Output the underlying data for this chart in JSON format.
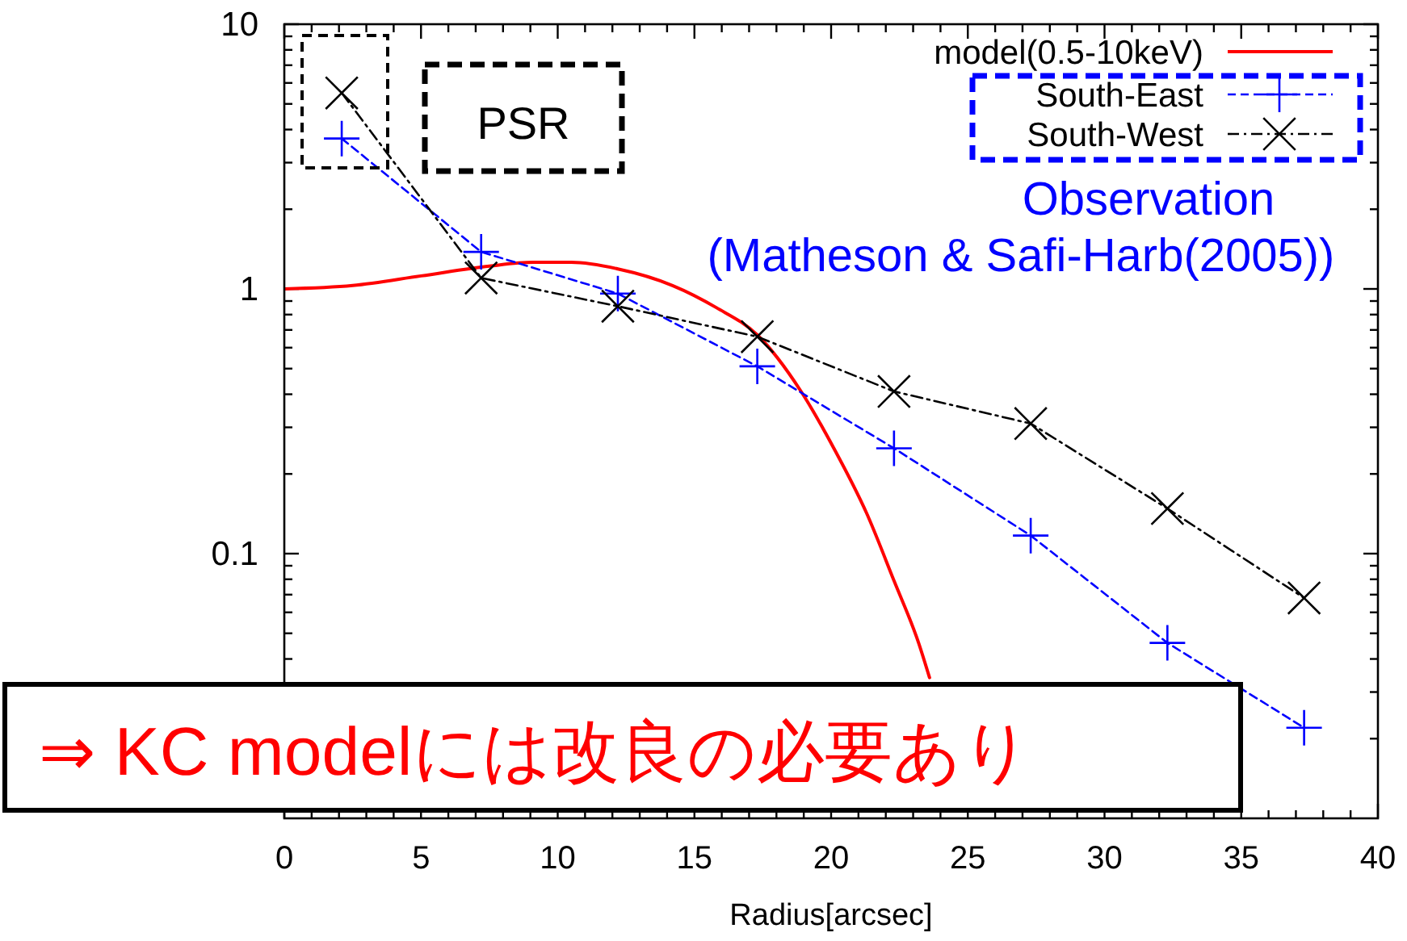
{
  "chart_data": {
    "type": "line",
    "xlabel": "Radius[arcsec]",
    "xlim": [
      0,
      40
    ],
    "xticks": [
      0,
      {
        "value": 1,
        "label": null
      },
      {
        "value": 2,
        "label": null
      },
      {
        "value": 3,
        "label": null
      },
      {
        "value": 4,
        "label": null
      },
      5,
      {
        "value": 6,
        "label": null
      },
      {
        "value": 7,
        "label": null
      },
      {
        "value": 8,
        "label": null
      },
      {
        "value": 9,
        "label": null
      },
      10,
      {
        "value": 11,
        "label": null
      },
      {
        "value": 12,
        "label": null
      },
      {
        "value": 13,
        "label": null
      },
      {
        "value": 14,
        "label": null
      },
      15,
      {
        "value": 16,
        "label": null
      },
      {
        "value": 17,
        "label": null
      },
      {
        "value": 18,
        "label": null
      },
      {
        "value": 19,
        "label": null
      },
      20,
      {
        "value": 21,
        "label": null
      },
      {
        "value": 22,
        "label": null
      },
      {
        "value": 23,
        "label": null
      },
      {
        "value": 24,
        "label": null
      },
      25,
      {
        "value": 26,
        "label": null
      },
      {
        "value": 27,
        "label": null
      },
      {
        "value": 28,
        "label": null
      },
      {
        "value": 29,
        "label": null
      },
      30,
      {
        "value": 31,
        "label": null
      },
      {
        "value": 32,
        "label": null
      },
      {
        "value": 33,
        "label": null
      },
      {
        "value": 34,
        "label": null
      },
      35,
      {
        "value": 36,
        "label": null
      },
      {
        "value": 37,
        "label": null
      },
      {
        "value": 38,
        "label": null
      },
      {
        "value": 39,
        "label": null
      },
      40
    ],
    "ylim": [
      0.01,
      10
    ],
    "yticks": [
      {
        "value": 0.02,
        "label": null
      },
      {
        "value": 0.03,
        "label": null
      },
      {
        "value": 0.04,
        "label": null
      },
      {
        "value": 0.05,
        "label": null
      },
      {
        "value": 0.06,
        "label": null
      },
      {
        "value": 0.07,
        "label": null
      },
      {
        "value": 0.08,
        "label": null
      },
      {
        "value": 0.09,
        "label": null
      },
      0.1,
      {
        "value": 0.2,
        "label": null
      },
      {
        "value": 0.3,
        "label": null
      },
      {
        "value": 0.4,
        "label": null
      },
      {
        "value": 0.5,
        "label": null
      },
      {
        "value": 0.6,
        "label": null
      },
      {
        "value": 0.7,
        "label": null
      },
      {
        "value": 0.8,
        "label": null
      },
      {
        "value": 0.9,
        "label": null
      },
      1,
      {
        "value": 2,
        "label": null
      },
      {
        "value": 3,
        "label": null
      },
      {
        "value": 4,
        "label": null
      },
      {
        "value": 5,
        "label": null
      },
      {
        "value": 6,
        "label": null
      },
      {
        "value": 7,
        "label": null
      },
      {
        "value": 8,
        "label": null
      },
      {
        "value": 9,
        "label": null
      },
      10
    ],
    "log": "y",
    "legend": "top right",
    "annotations": [
      "PSR",
      "Observation",
      "(Matheson & Safi-Harb(2005))",
      "⇒ KC modelには改良の必要あり"
    ],
    "series": [
      {
        "name": "model(0.5-10keV)",
        "color": "#ff0000",
        "line_style": "solid",
        "marker": "none",
        "x": [
          0,
          2.5,
          5,
          7.5,
          9.1,
          10.5,
          12.2,
          14.2,
          15.8,
          17.3,
          18.9,
          20.1,
          21.3,
          22.3,
          23.2,
          23.6
        ],
        "values": [
          1.0,
          1.03,
          1.12,
          1.22,
          1.26,
          1.26,
          1.19,
          1.03,
          0.85,
          0.67,
          0.41,
          0.25,
          0.142,
          0.079,
          0.046,
          0.034
        ]
      },
      {
        "name": "South-East",
        "color": "#0000ff",
        "line_style": "dashed",
        "marker": "cross",
        "x": [
          2.1,
          7.2,
          12.2,
          17.3,
          22.3,
          27.3,
          32.3,
          37.3
        ],
        "values": [
          3.7,
          1.38,
          0.96,
          0.51,
          0.25,
          0.117,
          0.046,
          0.022
        ]
      },
      {
        "name": "South-West",
        "color": "#000000",
        "line_style": "dashdot",
        "marker": "cross",
        "x": [
          2.1,
          7.2,
          12.2,
          17.3,
          22.3,
          27.3,
          32.3,
          37.3
        ],
        "values": [
          5.5,
          1.1,
          0.86,
          0.66,
          0.41,
          0.31,
          0.148,
          0.068
        ]
      }
    ]
  }
}
